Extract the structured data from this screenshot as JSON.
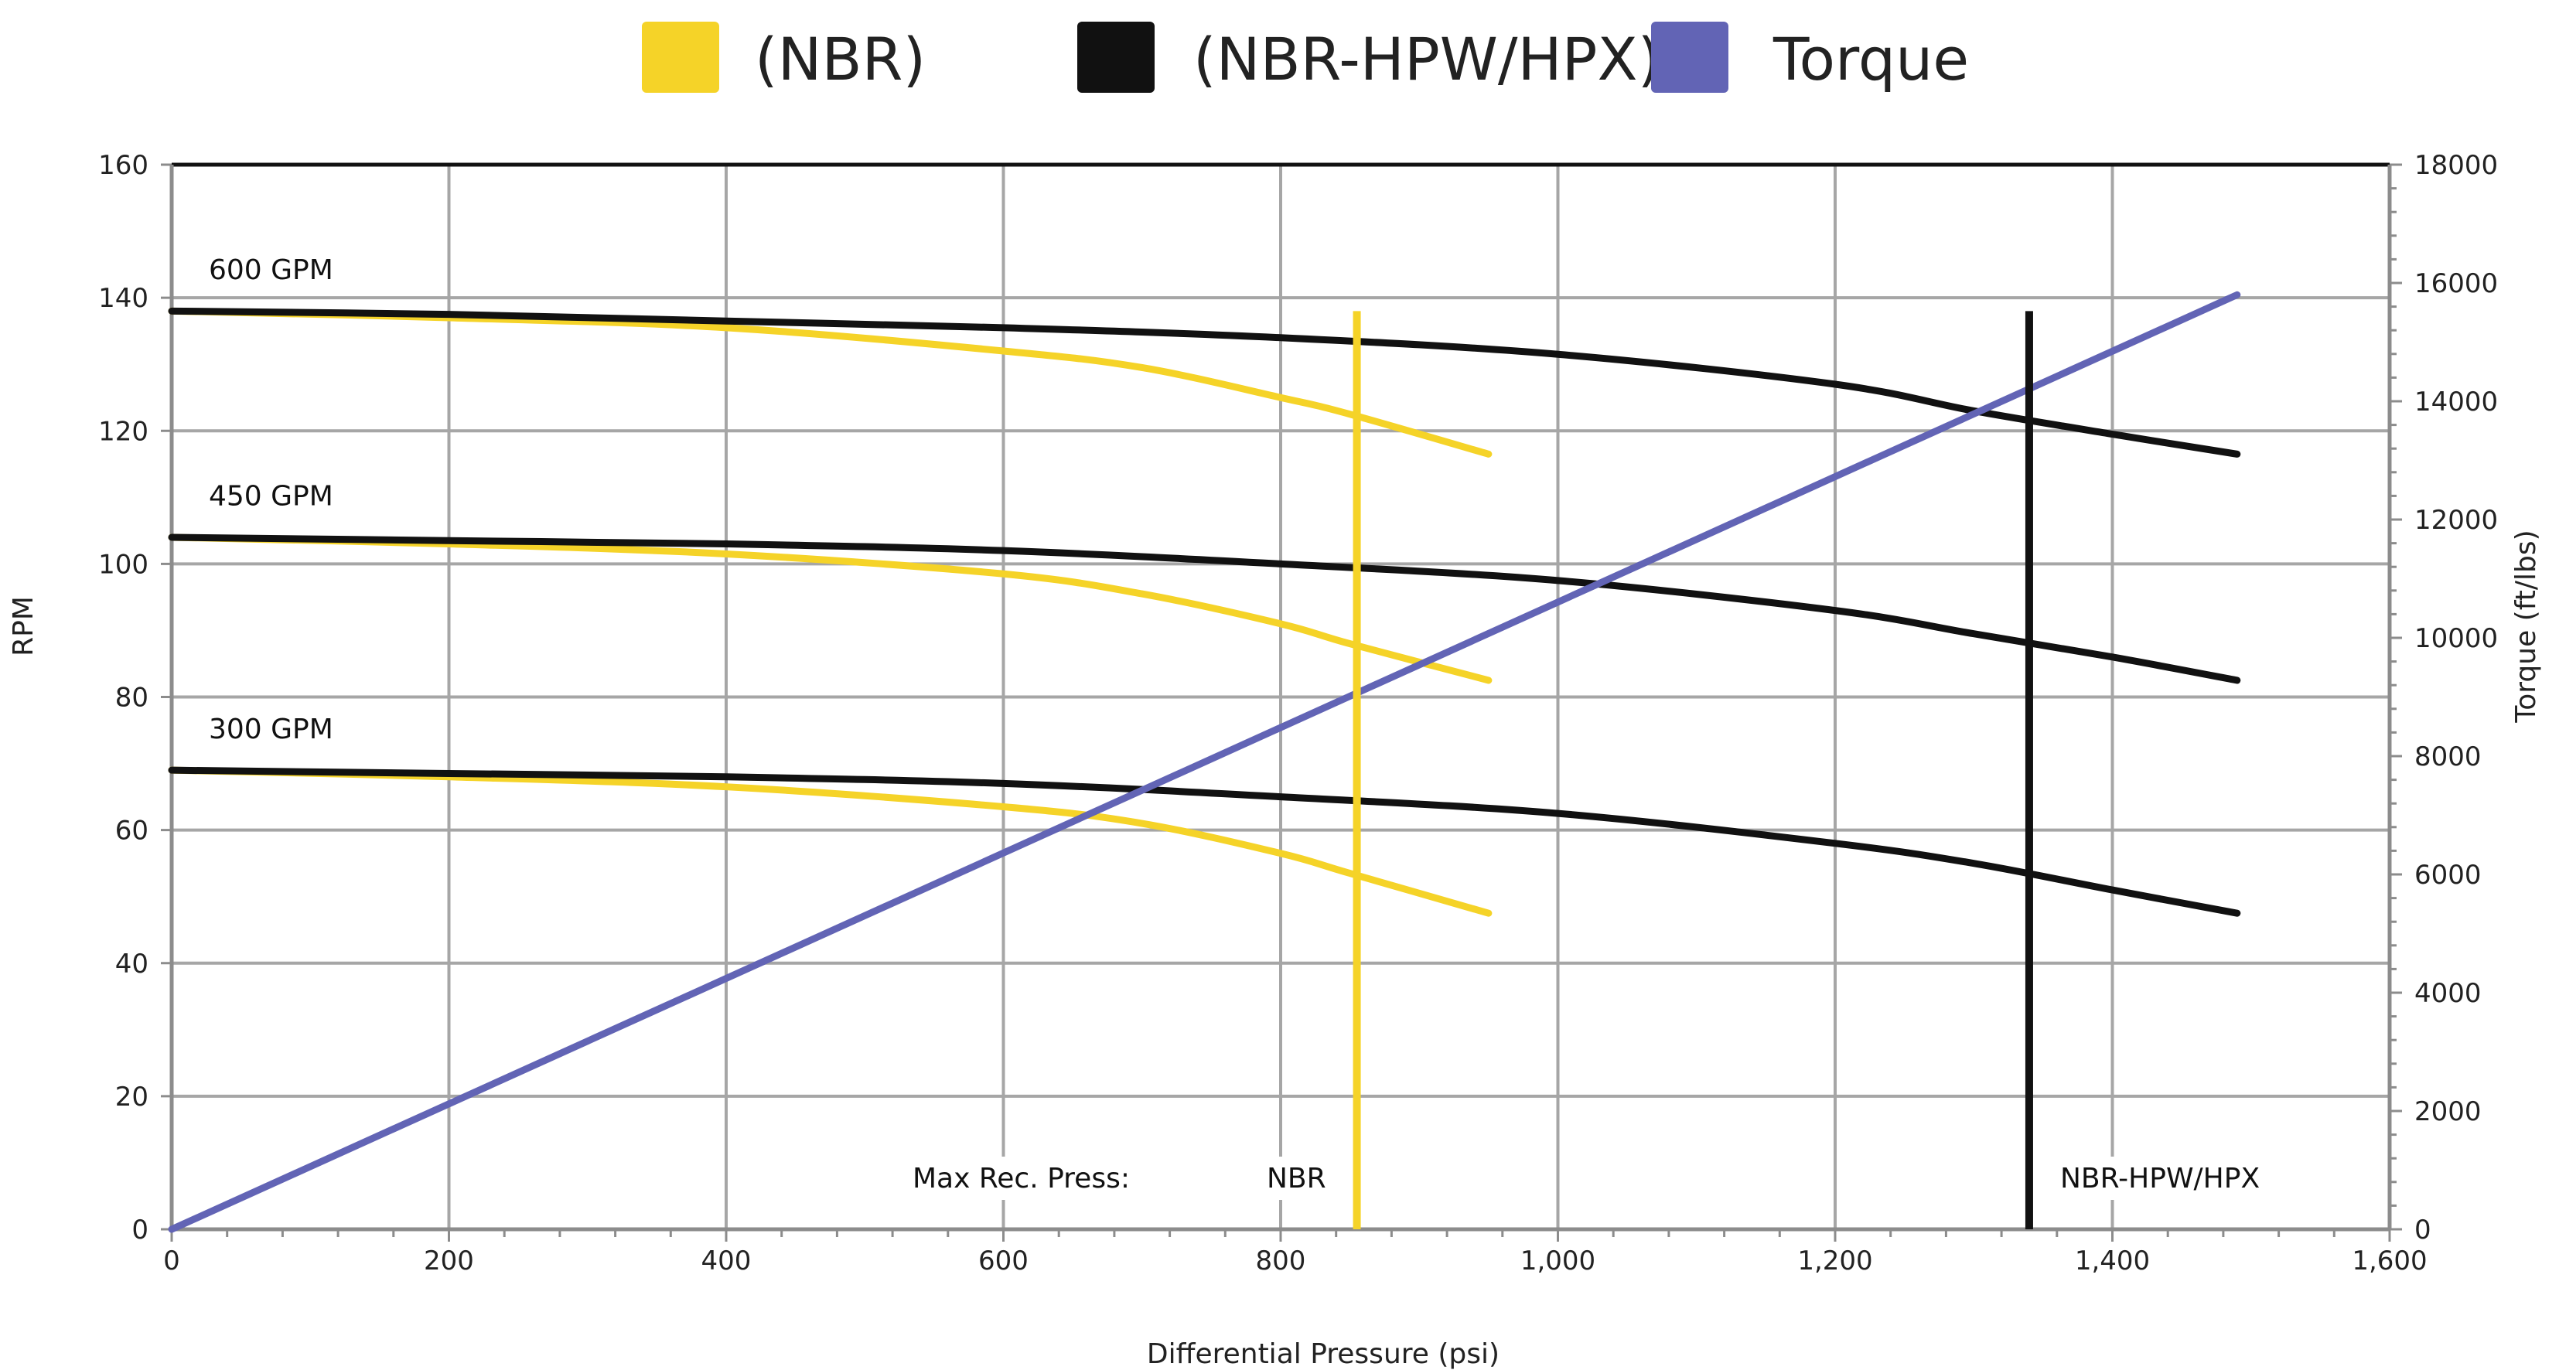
{
  "chart_data": {
    "type": "line",
    "title": "",
    "xlabel": "Differential Pressure (psi)",
    "ylabel": "RPM",
    "y2label": "Torque (ft/lbs)",
    "xlim": [
      0,
      1600
    ],
    "ylim": [
      0,
      160
    ],
    "y2lim": [
      0,
      18000
    ],
    "x_ticks": [
      0,
      200,
      400,
      600,
      800,
      1000,
      1200,
      1400,
      1600
    ],
    "x_tick_labels": [
      "0",
      "200",
      "400",
      "600",
      "800",
      "1,000",
      "1,200",
      "1,400",
      "1,600"
    ],
    "y_ticks": [
      0,
      20,
      40,
      60,
      80,
      100,
      120,
      140,
      160
    ],
    "y_tick_labels": [
      "0",
      "20",
      "40",
      "60",
      "80",
      "100",
      "120",
      "140",
      "160"
    ],
    "y2_ticks": [
      0,
      2000,
      4000,
      6000,
      8000,
      10000,
      12000,
      14000,
      16000,
      18000
    ],
    "y2_tick_labels": [
      "0",
      "2000",
      "4000",
      "6000",
      "8000",
      "10000",
      "12000",
      "14000",
      "16000",
      "18000"
    ],
    "grid": true,
    "legend_position": "top-center",
    "legend": [
      {
        "label": "(NBR)",
        "color": "#f5d328"
      },
      {
        "label": "(NBR-HPW/HPX)",
        "color": "#111111"
      },
      {
        "label": "Torque",
        "color": "#6264b5"
      }
    ],
    "series": [
      {
        "group": "NBR",
        "flow": "600 GPM",
        "color": "#f5d328",
        "axis": "left",
        "x": [
          0,
          200,
          400,
          600,
          700,
          800,
          850,
          950
        ],
        "y": [
          138,
          137,
          135.5,
          132,
          129.5,
          125,
          122.5,
          116.5
        ]
      },
      {
        "group": "NBR",
        "flow": "450 GPM",
        "color": "#f5d328",
        "axis": "left",
        "x": [
          0,
          200,
          400,
          600,
          700,
          800,
          850,
          950
        ],
        "y": [
          104,
          103,
          101.5,
          98.5,
          95.5,
          91,
          88,
          82.5
        ]
      },
      {
        "group": "NBR",
        "flow": "300 GPM",
        "color": "#f5d328",
        "axis": "left",
        "x": [
          0,
          200,
          400,
          600,
          700,
          800,
          850,
          950
        ],
        "y": [
          69,
          68,
          66.5,
          63.5,
          61,
          56.5,
          53.5,
          47.5
        ]
      },
      {
        "group": "NBR-HPW/HPX",
        "flow": "600 GPM",
        "color": "#111111",
        "axis": "left",
        "x": [
          0,
          200,
          400,
          600,
          800,
          1000,
          1200,
          1300,
          1400,
          1490
        ],
        "y": [
          138,
          137.5,
          136.5,
          135.5,
          134,
          131.5,
          127,
          123,
          119.5,
          116.5
        ]
      },
      {
        "group": "NBR-HPW/HPX",
        "flow": "450 GPM",
        "color": "#111111",
        "axis": "left",
        "x": [
          0,
          200,
          400,
          600,
          800,
          1000,
          1200,
          1300,
          1400,
          1490
        ],
        "y": [
          104,
          103.5,
          103,
          102,
          100,
          97.5,
          93,
          89.5,
          86,
          82.5
        ]
      },
      {
        "group": "NBR-HPW/HPX",
        "flow": "300 GPM",
        "color": "#111111",
        "axis": "left",
        "x": [
          0,
          200,
          400,
          600,
          800,
          1000,
          1200,
          1300,
          1400,
          1490
        ],
        "y": [
          69,
          68.5,
          68,
          67,
          65,
          62.5,
          58,
          55,
          51,
          47.5
        ]
      },
      {
        "group": "Torque",
        "color": "#6264b5",
        "axis": "right",
        "x": [
          0,
          1490
        ],
        "y": [
          0,
          15800
        ]
      }
    ],
    "flow_labels": [
      {
        "text": "600 GPM",
        "y": 140
      },
      {
        "text": "450 GPM",
        "y": 106
      },
      {
        "text": "300 GPM",
        "y": 71
      }
    ],
    "max_rec_press": {
      "label": "Max Rec. Press:",
      "markers": [
        {
          "label": "NBR",
          "x": 855,
          "y_top": 138,
          "color": "#f5d328"
        },
        {
          "label": "NBR-HPW/HPX",
          "x": 1340,
          "y_top": 138,
          "color": "#111111"
        }
      ]
    }
  }
}
